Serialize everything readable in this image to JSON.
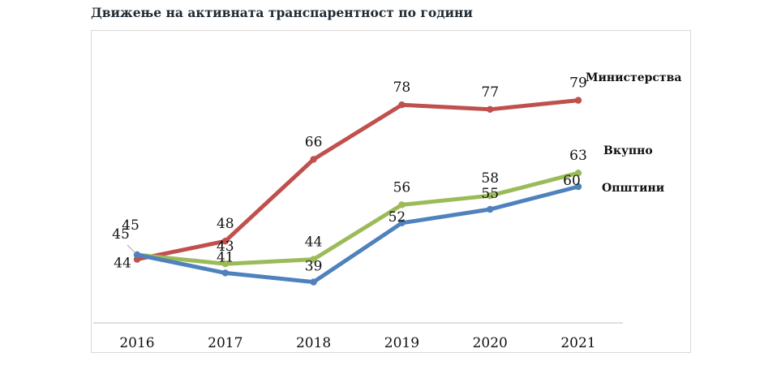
{
  "title": "Движење на активната транспарентност по години",
  "chart_data": {
    "type": "line",
    "title": "Движење на активната транспарентност по години",
    "categories": [
      "2016",
      "2017",
      "2018",
      "2019",
      "2020",
      "2021"
    ],
    "ylim": [
      30,
      90
    ],
    "grid": false,
    "legend": "series labels at right end of lines",
    "series": [
      {
        "name": "Министерства",
        "color": "#c0504d",
        "values": [
          44,
          48,
          66,
          78,
          77,
          79
        ]
      },
      {
        "name": "Вкупно",
        "color": "#9bbb59",
        "values": [
          45,
          43,
          44,
          56,
          58,
          63
        ]
      },
      {
        "name": "Општини",
        "color": "#4f81bd",
        "values": [
          45,
          41,
          39,
          52,
          55,
          60
        ]
      }
    ]
  }
}
